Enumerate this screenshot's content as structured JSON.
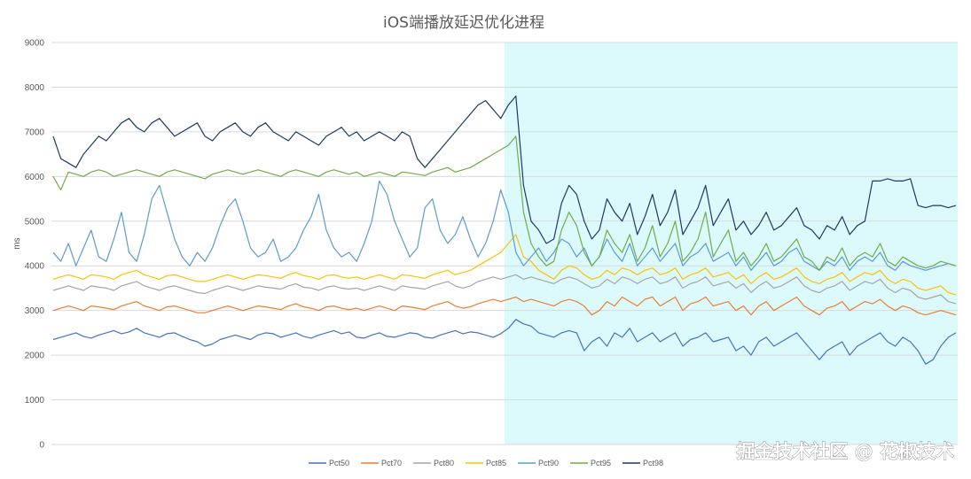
{
  "chart_data": {
    "type": "line",
    "title": "iOS端播放延迟优化进程",
    "ylabel": "ms",
    "xlabel": "",
    "ylim": [
      0,
      9000
    ],
    "yticks": [
      "0",
      "1000",
      "2000",
      "3000",
      "4000",
      "5000",
      "6000",
      "7000",
      "8000",
      "9000"
    ],
    "grid": true,
    "legend_position": "bottom",
    "highlight_region": {
      "start_fraction": 0.5,
      "end_fraction": 1.0,
      "color": "#dcfafc"
    },
    "n_points": 120,
    "series": [
      {
        "name": "Pct50",
        "color": "#4472c4",
        "values": [
          2350,
          2400,
          2450,
          2500,
          2420,
          2380,
          2450,
          2500,
          2550,
          2480,
          2520,
          2600,
          2500,
          2450,
          2400,
          2480,
          2500,
          2420,
          2350,
          2300,
          2200,
          2250,
          2350,
          2400,
          2450,
          2400,
          2350,
          2450,
          2500,
          2480,
          2400,
          2450,
          2500,
          2420,
          2380,
          2450,
          2500,
          2550,
          2480,
          2520,
          2400,
          2380,
          2450,
          2500,
          2420,
          2400,
          2450,
          2500,
          2480,
          2400,
          2380,
          2450,
          2500,
          2550,
          2480,
          2520,
          2500,
          2450,
          2400,
          2480,
          2600,
          2800,
          2700,
          2650,
          2500,
          2450,
          2400,
          2500,
          2550,
          2500,
          2100,
          2300,
          2400,
          2200,
          2500,
          2400,
          2600,
          2300,
          2400,
          2500,
          2300,
          2400,
          2500,
          2200,
          2350,
          2400,
          2500,
          2300,
          2350,
          2400,
          2100,
          2200,
          2000,
          2300,
          2400,
          2200,
          2300,
          2400,
          2500,
          2300,
          2100,
          1900,
          2100,
          2200,
          2300,
          2000,
          2200,
          2300,
          2400,
          2500,
          2300,
          2200,
          2400,
          2300,
          2100,
          1800,
          1900,
          2200,
          2400,
          2500
        ]
      },
      {
        "name": "Pct70",
        "color": "#ed7d31",
        "values": [
          3000,
          3050,
          3100,
          3050,
          3000,
          3100,
          3080,
          3050,
          3020,
          3100,
          3150,
          3200,
          3100,
          3050,
          3000,
          3080,
          3100,
          3050,
          3000,
          2950,
          2950,
          3000,
          3050,
          3100,
          3050,
          3000,
          3050,
          3100,
          3080,
          3050,
          3020,
          3100,
          3150,
          3080,
          3050,
          3000,
          3080,
          3100,
          3050,
          3020,
          3050,
          3000,
          3050,
          3100,
          3050,
          3000,
          3100,
          3080,
          3050,
          3020,
          3100,
          3150,
          3200,
          3100,
          3050,
          3080,
          3150,
          3200,
          3250,
          3200,
          3250,
          3300,
          3200,
          3250,
          3200,
          3150,
          3100,
          3200,
          3250,
          3200,
          3100,
          2900,
          3000,
          3200,
          3100,
          3300,
          3200,
          3100,
          3250,
          3300,
          3100,
          3200,
          3300,
          3000,
          3150,
          3200,
          3300,
          3100,
          3150,
          3200,
          3000,
          3100,
          2900,
          3100,
          3200,
          3000,
          3100,
          3200,
          3300,
          3100,
          3000,
          2900,
          3050,
          3100,
          3200,
          3000,
          3100,
          3200,
          3150,
          3250,
          3100,
          3000,
          3100,
          3050,
          2950,
          2900,
          2950,
          3000,
          2950,
          2900
        ]
      },
      {
        "name": "Pct80",
        "color": "#a5a5a5",
        "values": [
          3450,
          3500,
          3550,
          3500,
          3450,
          3550,
          3520,
          3500,
          3450,
          3550,
          3600,
          3650,
          3550,
          3500,
          3450,
          3520,
          3550,
          3500,
          3450,
          3400,
          3380,
          3450,
          3500,
          3550,
          3500,
          3450,
          3500,
          3550,
          3520,
          3500,
          3480,
          3550,
          3600,
          3520,
          3500,
          3450,
          3520,
          3550,
          3500,
          3480,
          3500,
          3450,
          3500,
          3550,
          3500,
          3450,
          3550,
          3520,
          3500,
          3480,
          3550,
          3600,
          3650,
          3550,
          3500,
          3550,
          3650,
          3700,
          3750,
          3700,
          3750,
          3800,
          3700,
          3750,
          3700,
          3650,
          3600,
          3700,
          3750,
          3700,
          3600,
          3500,
          3550,
          3700,
          3600,
          3750,
          3700,
          3600,
          3700,
          3750,
          3600,
          3650,
          3750,
          3500,
          3600,
          3650,
          3750,
          3550,
          3600,
          3650,
          3500,
          3600,
          3400,
          3550,
          3650,
          3500,
          3550,
          3650,
          3750,
          3550,
          3450,
          3400,
          3500,
          3550,
          3650,
          3450,
          3550,
          3650,
          3600,
          3700,
          3500,
          3400,
          3500,
          3450,
          3300,
          3250,
          3300,
          3350,
          3200,
          3150
        ]
      },
      {
        "name": "Pct85",
        "color": "#ffc000",
        "values": [
          3700,
          3750,
          3800,
          3750,
          3700,
          3800,
          3780,
          3750,
          3700,
          3800,
          3850,
          3900,
          3800,
          3750,
          3700,
          3780,
          3800,
          3750,
          3700,
          3650,
          3650,
          3700,
          3750,
          3800,
          3750,
          3700,
          3750,
          3800,
          3780,
          3750,
          3720,
          3800,
          3850,
          3780,
          3750,
          3700,
          3780,
          3800,
          3750,
          3720,
          3750,
          3700,
          3750,
          3800,
          3750,
          3700,
          3800,
          3780,
          3750,
          3720,
          3800,
          3850,
          3900,
          3800,
          3850,
          3900,
          4000,
          4100,
          4200,
          4300,
          4500,
          4700,
          4200,
          4100,
          3900,
          3800,
          3700,
          3900,
          4000,
          3950,
          3800,
          3700,
          3750,
          3900,
          3800,
          3950,
          3900,
          3800,
          3900,
          3950,
          3800,
          3850,
          3950,
          3700,
          3800,
          3850,
          3950,
          3750,
          3800,
          3850,
          3700,
          3800,
          3600,
          3750,
          3850,
          3700,
          3750,
          3850,
          3950,
          3750,
          3650,
          3600,
          3700,
          3750,
          3850,
          3650,
          3750,
          3850,
          3800,
          3900,
          3700,
          3600,
          3700,
          3650,
          3500,
          3450,
          3500,
          3550,
          3400,
          3350
        ]
      },
      {
        "name": "Pct90",
        "color": "#5b9bd5",
        "values": [
          4300,
          4100,
          4500,
          4000,
          4400,
          4800,
          4200,
          4100,
          4600,
          5200,
          4300,
          4100,
          4700,
          5500,
          5800,
          5200,
          4600,
          4200,
          4000,
          4300,
          4100,
          4400,
          4900,
          5300,
          5500,
          5000,
          4400,
          4200,
          4300,
          4600,
          4100,
          4200,
          4400,
          4800,
          5100,
          5600,
          4800,
          4400,
          4200,
          4300,
          4100,
          4500,
          5000,
          5900,
          5600,
          5000,
          4600,
          4200,
          4400,
          5300,
          5500,
          4800,
          4500,
          4700,
          5100,
          4600,
          4200,
          4500,
          5000,
          5700,
          5200,
          4300,
          4000,
          4200,
          4400,
          4100,
          4300,
          4600,
          4500,
          4200,
          4400,
          4000,
          4200,
          4600,
          4300,
          4100,
          4500,
          4000,
          4200,
          4400,
          4100,
          4300,
          4500,
          4000,
          4200,
          4300,
          4500,
          4100,
          4200,
          4300,
          4000,
          4200,
          3900,
          4100,
          4300,
          4000,
          4100,
          4300,
          4400,
          4100,
          4000,
          3900,
          4100,
          4000,
          4200,
          3900,
          4100,
          4200,
          4100,
          4300,
          4000,
          3900,
          4100,
          4000,
          3950,
          3900,
          3950,
          4000,
          4050,
          4000
        ]
      },
      {
        "name": "Pct95",
        "color": "#70ad47",
        "values": [
          6000,
          5700,
          6100,
          6050,
          6000,
          6100,
          6150,
          6100,
          6000,
          6050,
          6100,
          6150,
          6100,
          6050,
          6000,
          6100,
          6150,
          6100,
          6050,
          6000,
          5950,
          6050,
          6100,
          6150,
          6100,
          6050,
          6100,
          6150,
          6100,
          6050,
          6000,
          6100,
          6150,
          6100,
          6050,
          6000,
          6100,
          6150,
          6100,
          6050,
          6100,
          6000,
          6050,
          6100,
          6050,
          6000,
          6100,
          6080,
          6050,
          6020,
          6100,
          6150,
          6200,
          6100,
          6150,
          6200,
          6300,
          6400,
          6500,
          6600,
          6700,
          6900,
          5200,
          4500,
          4200,
          4000,
          4100,
          4800,
          5200,
          4900,
          4300,
          4000,
          4200,
          4800,
          4500,
          4300,
          4700,
          4100,
          4400,
          4900,
          4200,
          4500,
          5000,
          4100,
          4300,
          4600,
          5200,
          4200,
          4500,
          4800,
          4100,
          4300,
          4000,
          4200,
          4500,
          4100,
          4200,
          4400,
          4600,
          4200,
          4100,
          3900,
          4200,
          4100,
          4400,
          4000,
          4200,
          4300,
          4200,
          4500,
          4100,
          4000,
          4200,
          4100,
          4000,
          3950,
          4000,
          4100,
          4050,
          4000
        ]
      },
      {
        "name": "Pct98",
        "color": "#203864",
        "values": [
          6900,
          6400,
          6300,
          6200,
          6500,
          6700,
          6900,
          6800,
          7000,
          7200,
          7300,
          7100,
          7000,
          7200,
          7300,
          7100,
          6900,
          7000,
          7100,
          7200,
          6900,
          6800,
          7000,
          7100,
          7200,
          7000,
          6900,
          7100,
          7200,
          7000,
          6900,
          6800,
          7000,
          6900,
          6800,
          6700,
          6900,
          7000,
          7100,
          6900,
          7000,
          6800,
          6900,
          7000,
          6900,
          6800,
          7000,
          6900,
          6400,
          6200,
          6400,
          6600,
          6800,
          7000,
          7200,
          7400,
          7600,
          7700,
          7500,
          7300,
          7600,
          7800,
          5800,
          5000,
          4800,
          4500,
          4600,
          5400,
          5800,
          5600,
          5000,
          4600,
          4800,
          5500,
          5200,
          5000,
          5400,
          4700,
          5100,
          5600,
          4900,
          5200,
          5700,
          4700,
          5000,
          5300,
          5800,
          4900,
          5200,
          5500,
          4800,
          5000,
          4700,
          4900,
          5200,
          4800,
          4900,
          5100,
          5300,
          4900,
          4800,
          4600,
          4900,
          4800,
          5100,
          4700,
          4900,
          5000,
          5900,
          5900,
          5950,
          5900,
          5900,
          5950,
          5350,
          5300,
          5350,
          5350,
          5300,
          5350
        ]
      }
    ]
  },
  "watermark": "掘金技术社区 @ 花椒技术"
}
